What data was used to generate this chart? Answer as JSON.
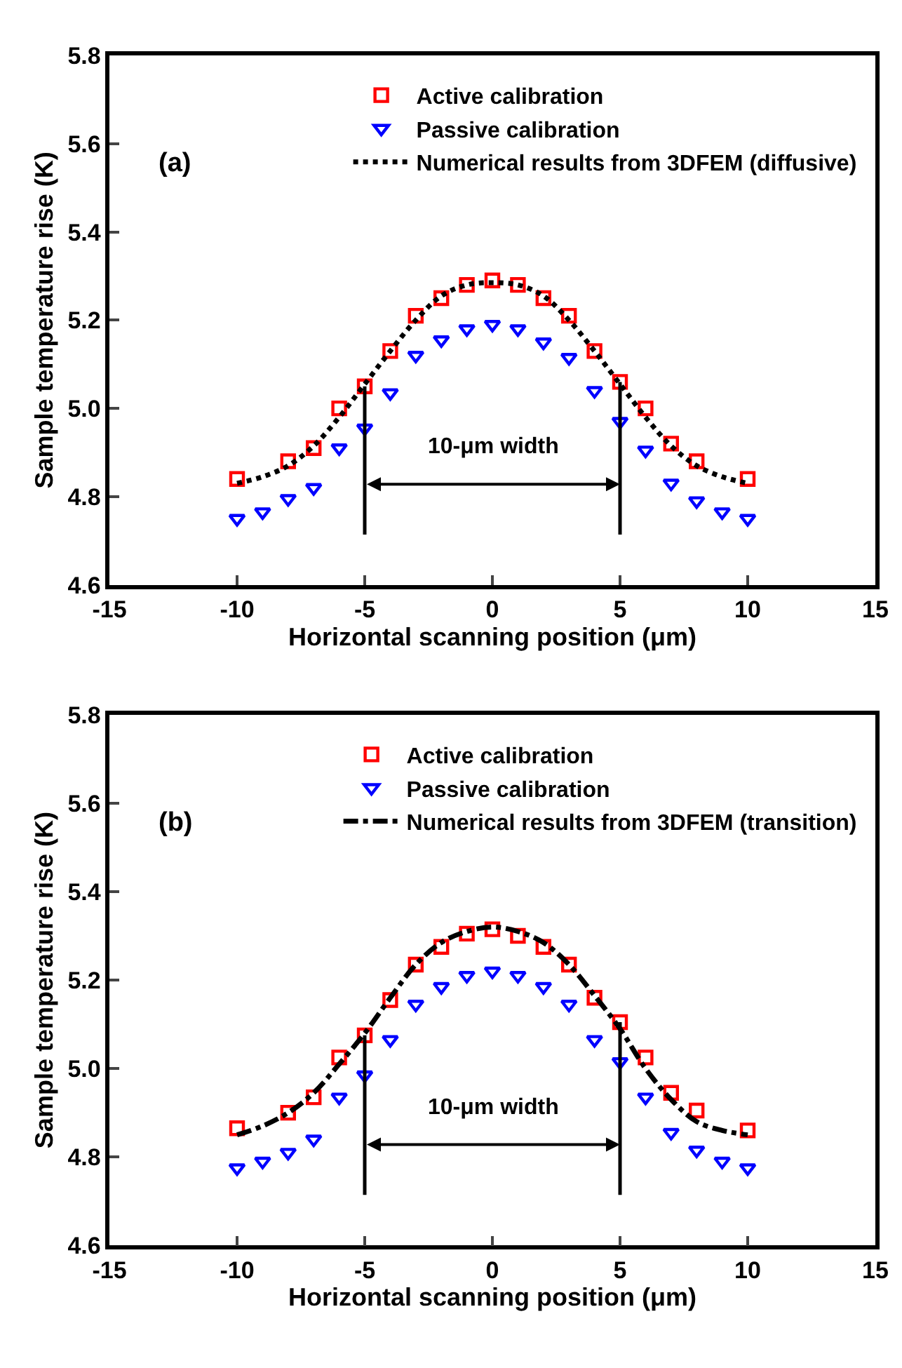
{
  "chart_data": [
    {
      "type": "scatter",
      "xlabel": "Horizontal scanning position (μm)",
      "ylabel": "Sample temperature rise (K)",
      "xlim": [
        -15,
        15
      ],
      "xticks": [
        -15,
        -10,
        -5,
        0,
        5,
        10,
        15
      ],
      "ylim": [
        4.6,
        5.8
      ],
      "yticks": [
        4.6,
        4.8,
        {
          "value": 5.0,
          "label": "5.0"
        },
        5.2,
        5.4,
        5.6,
        5.8
      ],
      "legend": "top right",
      "annotations": [
        "(a)",
        "10-μm width"
      ],
      "ref_lines": [
        {
          "axis": "x",
          "value": -5
        },
        {
          "axis": "x",
          "value": 5
        }
      ],
      "series": [
        {
          "name": "Active calibration",
          "color": "#ff0000",
          "marker": "square",
          "x": [
            -10,
            -8,
            -7,
            -6,
            -5,
            -4,
            -3,
            -2,
            -1,
            0,
            1,
            2,
            3,
            4,
            5,
            6,
            7,
            8,
            10
          ],
          "values": [
            4.84,
            4.88,
            4.91,
            5.0,
            5.05,
            5.13,
            5.21,
            5.25,
            5.28,
            5.29,
            5.28,
            5.25,
            5.21,
            5.13,
            5.06,
            5.0,
            4.92,
            4.88,
            4.84
          ]
        },
        {
          "name": "Passive calibration",
          "color": "#0000ff",
          "marker": "triangle",
          "x": [
            -10,
            -9,
            -8,
            -7,
            -6,
            -5,
            -4,
            -3,
            -2,
            -1,
            0,
            1,
            2,
            3,
            4,
            5,
            6,
            7,
            8,
            9,
            10
          ],
          "values": [
            4.75,
            4.765,
            4.795,
            4.82,
            4.91,
            4.955,
            5.035,
            5.12,
            5.155,
            5.18,
            5.19,
            5.18,
            5.15,
            5.115,
            5.04,
            4.97,
            4.905,
            4.83,
            4.79,
            4.765,
            4.75
          ]
        },
        {
          "name": "Numerical results from 3DFEM (diffusive)",
          "type": "line",
          "color": "#000000",
          "line_style": "dotted",
          "x": [
            -10,
            -9,
            -8,
            -7,
            -6,
            -5,
            -4,
            -3,
            -2,
            -1,
            0,
            1,
            2,
            3,
            4,
            5,
            6,
            7,
            8,
            9,
            10
          ],
          "values": [
            4.83,
            4.845,
            4.87,
            4.915,
            4.98,
            5.055,
            5.13,
            5.2,
            5.255,
            5.28,
            5.285,
            5.28,
            5.255,
            5.2,
            5.13,
            5.055,
            4.98,
            4.915,
            4.87,
            4.845,
            4.83
          ]
        }
      ]
    },
    {
      "type": "scatter",
      "xlabel": "Horizontal scanning position (μm)",
      "ylabel": "Sample temperature rise (K)",
      "xlim": [
        -15,
        15
      ],
      "xticks": [
        -15,
        -10,
        -5,
        0,
        5,
        10,
        15
      ],
      "ylim": [
        4.6,
        5.8
      ],
      "yticks": [
        4.6,
        4.8,
        {
          "value": 5.0,
          "label": "5.0"
        },
        5.2,
        5.4,
        5.6,
        5.8
      ],
      "legend": "top right",
      "annotations": [
        "(b)",
        "10-μm width"
      ],
      "ref_lines": [
        {
          "axis": "x",
          "value": -5
        },
        {
          "axis": "x",
          "value": 5
        }
      ],
      "series": [
        {
          "name": "Active calibration",
          "color": "#ff0000",
          "marker": "square",
          "x": [
            -10,
            -8,
            -7,
            -6,
            -5,
            -4,
            -3,
            -2,
            -1,
            0,
            1,
            2,
            3,
            4,
            5,
            6,
            7,
            8,
            10
          ],
          "values": [
            4.865,
            4.9,
            4.935,
            5.025,
            5.075,
            5.155,
            5.235,
            5.275,
            5.305,
            5.315,
            5.3,
            5.275,
            5.235,
            5.16,
            5.105,
            5.025,
            4.945,
            4.905,
            4.86
          ]
        },
        {
          "name": "Passive calibration",
          "color": "#0000ff",
          "marker": "triangle",
          "x": [
            -10,
            -9,
            -8,
            -7,
            -6,
            -5,
            -4,
            -3,
            -2,
            -1,
            0,
            1,
            2,
            3,
            4,
            5,
            6,
            7,
            8,
            9,
            10
          ],
          "values": [
            4.775,
            4.79,
            4.81,
            4.84,
            4.935,
            4.985,
            5.065,
            5.145,
            5.185,
            5.21,
            5.22,
            5.21,
            5.185,
            5.145,
            5.065,
            5.015,
            4.935,
            4.855,
            4.815,
            4.79,
            4.775
          ]
        },
        {
          "name": "Numerical results from 3DFEM (transition)",
          "type": "line",
          "color": "#000000",
          "line_style": "dashdot",
          "x": [
            -10,
            -9,
            -8,
            -7,
            -6,
            -5,
            -4,
            -3,
            -2,
            -1,
            0,
            1,
            2,
            3,
            4,
            5,
            6,
            7,
            8,
            9,
            10
          ],
          "values": [
            4.85,
            4.87,
            4.9,
            4.945,
            5.01,
            5.08,
            5.16,
            5.235,
            5.285,
            5.31,
            5.32,
            5.31,
            5.285,
            5.235,
            5.165,
            5.09,
            5.0,
            4.93,
            4.88,
            4.86,
            4.85
          ]
        }
      ]
    }
  ]
}
